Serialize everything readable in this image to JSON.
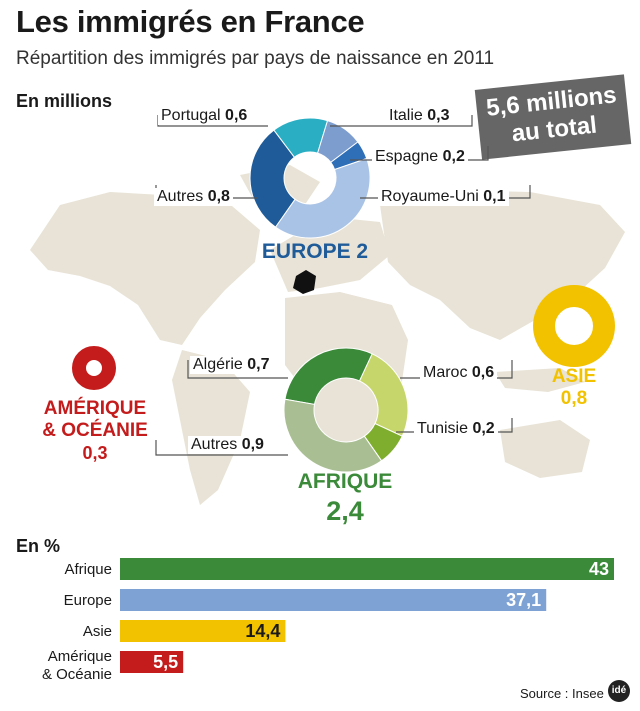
{
  "header": {
    "title": "Les immigrés en France",
    "subtitle": "Répartition des immigrés par pays de naissance en 2011",
    "unit_millions": "En millions",
    "total_line1": "5,6 millions",
    "total_line2": "au total"
  },
  "colors": {
    "europe_dark": "#1f5b99",
    "europe_light": "#a9c3e6",
    "europe_teal": "#2aaec4",
    "afrique_dark": "#3b8a3a",
    "afrique_light": "#c7d66b",
    "afrique_mid": "#7fae2f",
    "afrique_grey": "#a9bf93",
    "asie": "#f2c200",
    "amerique": "#c41c1c",
    "map_land": "#e8e3d6",
    "badge": "#666666"
  },
  "regions": {
    "europe": {
      "name": "EUROPE",
      "value": "2"
    },
    "afrique": {
      "name": "AFRIQUE",
      "value": "2,4"
    },
    "asie": {
      "name": "ASIE",
      "value": "0,8"
    },
    "amerique": {
      "name_line1": "AMÉRIQUE",
      "name_line2": "& OCÉANIE",
      "value": "0,3"
    }
  },
  "chart_data": [
    {
      "type": "pie",
      "title": "EUROPE 2",
      "categories": [
        "Portugal",
        "Italie",
        "Espagne",
        "Royaume-Uni",
        "Autres"
      ],
      "values": [
        0.6,
        0.3,
        0.2,
        0.1,
        0.8
      ],
      "labels": [
        "0,6",
        "0,3",
        "0,2",
        "0,1",
        "0,8"
      ]
    },
    {
      "type": "pie",
      "title": "AFRIQUE 2,4",
      "categories": [
        "Algérie",
        "Maroc",
        "Tunisie",
        "Autres"
      ],
      "values": [
        0.7,
        0.6,
        0.2,
        0.9
      ],
      "labels": [
        "0,7",
        "0,6",
        "0,2",
        "0,9"
      ]
    },
    {
      "type": "bar",
      "title": "En %",
      "categories": [
        "Afrique",
        "Europe",
        "Asie",
        "Amérique & Océanie"
      ],
      "category_lines": [
        [
          "Afrique"
        ],
        [
          "Europe"
        ],
        [
          "Asie"
        ],
        [
          "Amérique",
          "& Océanie"
        ]
      ],
      "values": [
        43,
        37.1,
        14.4,
        5.5
      ],
      "labels": [
        "43",
        "37,1",
        "14,4",
        "5,5"
      ],
      "xlim": [
        0,
        43
      ]
    }
  ],
  "footer": {
    "source": "Source : Insee",
    "logo": "idé"
  }
}
